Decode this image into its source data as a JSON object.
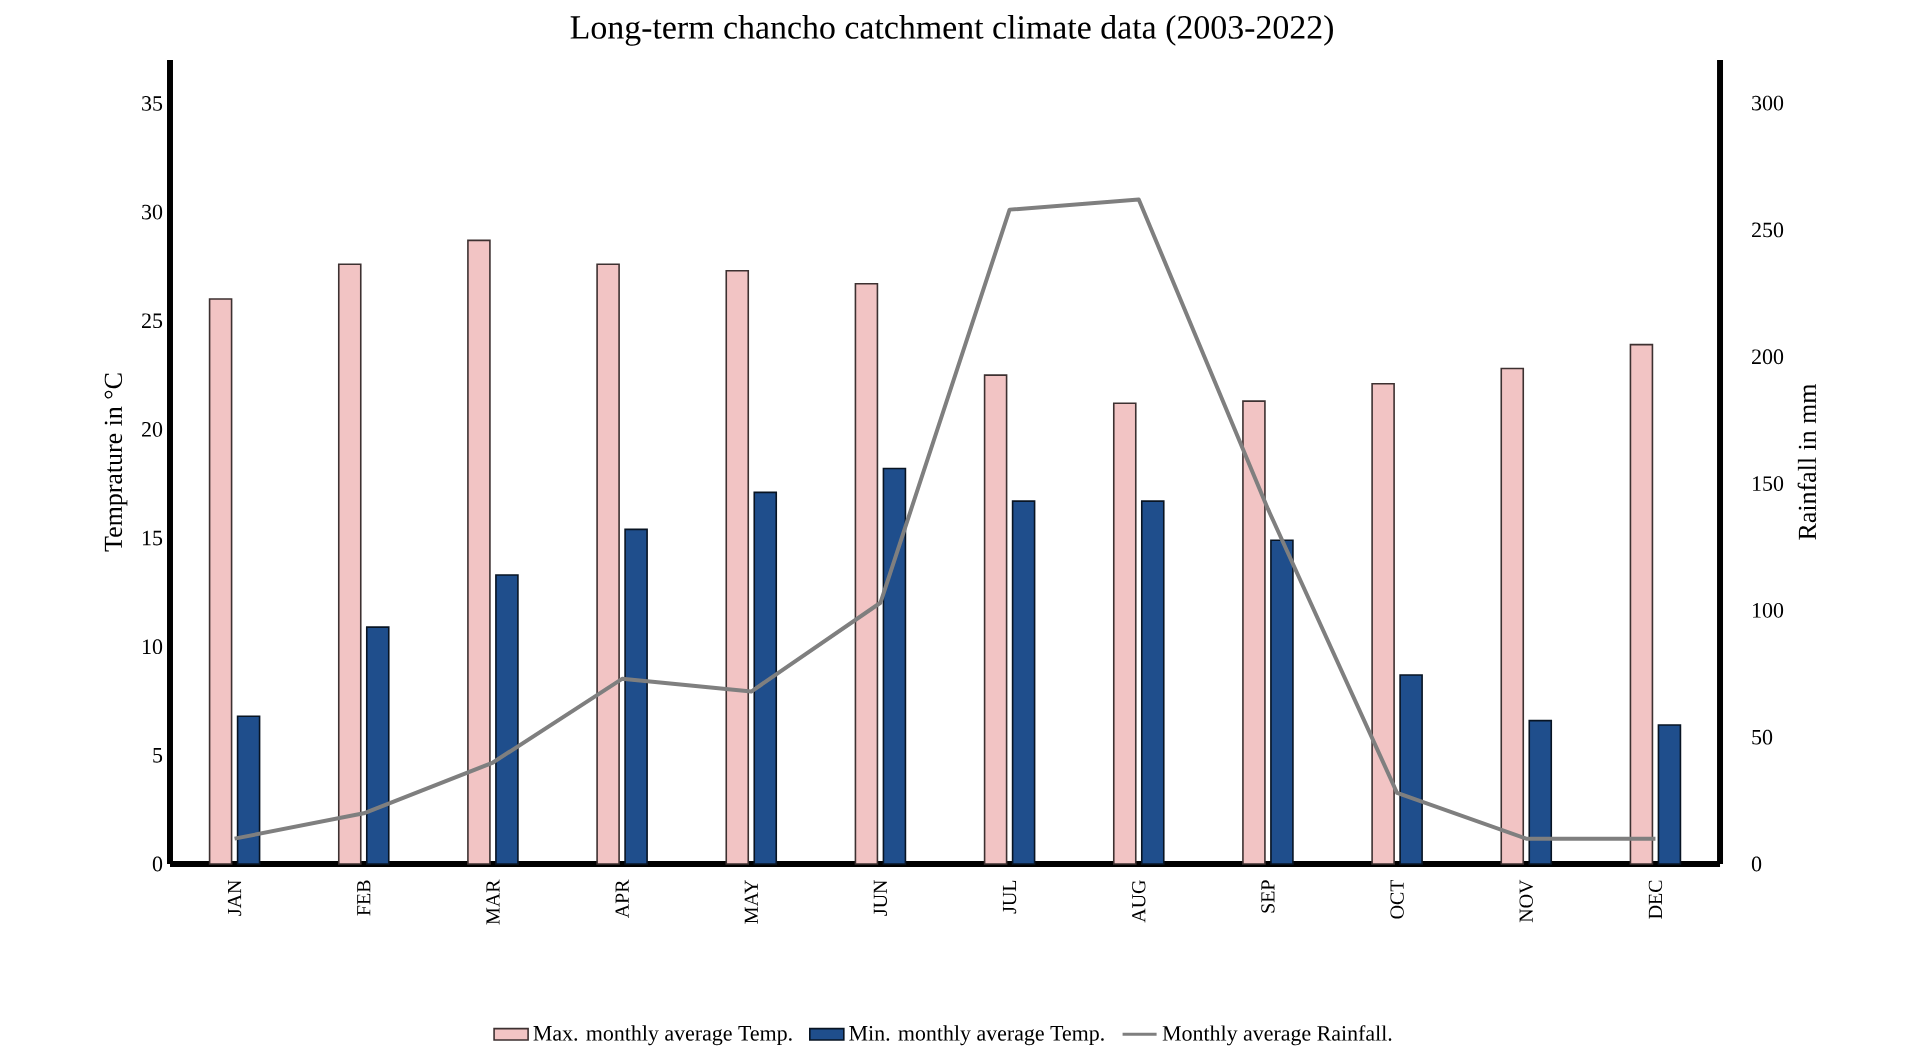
{
  "chart_data": {
    "type": "bar",
    "title": "Long-term chancho catchment climate data (2003-2022)",
    "ylabel": "Temprature in °C",
    "y2label": "Rainfall in mm",
    "categories": [
      "JAN",
      "FEB",
      "MAR",
      "APR",
      "MAY",
      "JUN",
      "JUL",
      "AUG",
      "SEP",
      "OCT",
      "NOV",
      "DEC"
    ],
    "series": [
      {
        "name": "Max. monthly average Temp.",
        "color": "#f2c4c4",
        "values": [
          26,
          27.6,
          28.7,
          27.6,
          27.3,
          26.7,
          22.5,
          21.2,
          21.3,
          22.1,
          22.8,
          23.9
        ]
      },
      {
        "name": "Min. monthly average Temp.",
        "color": "#1f4e8c",
        "values": [
          6.8,
          10.9,
          13.3,
          15.4,
          17.1,
          18.2,
          16.7,
          16.7,
          14.9,
          8.7,
          6.6,
          6.4
        ]
      },
      {
        "name": "Monthly average Rainfall.",
        "type": "line",
        "axis": "y2",
        "color": "#7f7f7f",
        "values": [
          10,
          20,
          40,
          73,
          68,
          103,
          258,
          262,
          140,
          28,
          10,
          10
        ]
      }
    ],
    "ylim": [
      0,
      37
    ],
    "yticks": [
      0,
      5,
      10,
      15,
      20,
      25,
      30,
      35
    ],
    "y2lim": [
      0,
      317
    ],
    "y2ticks": [
      0,
      50,
      100,
      150,
      200,
      250,
      300
    ],
    "legend": "bottom",
    "marker": "none"
  }
}
